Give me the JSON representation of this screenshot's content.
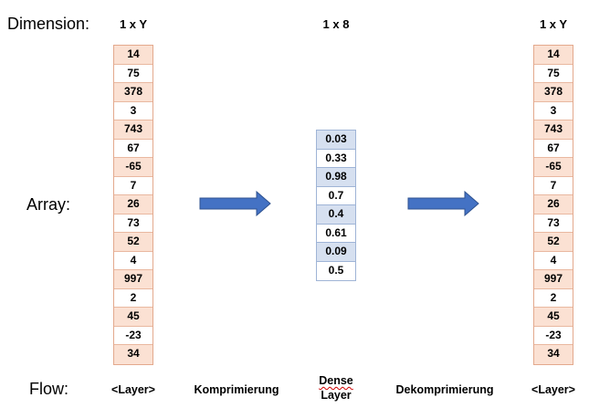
{
  "labels": {
    "dimension": "Dimension:",
    "array": "Array:",
    "flow": "Flow:"
  },
  "dimensions": {
    "left": "1 x Y",
    "middle": "1 x 8",
    "right": "1 x Y"
  },
  "arrays": {
    "left": [
      "14",
      "75",
      "378",
      "3",
      "743",
      "67",
      "-65",
      "7",
      "26",
      "73",
      "52",
      "4",
      "997",
      "2",
      "45",
      "-23",
      "34"
    ],
    "middle": [
      "0.03",
      "0.33",
      "0.98",
      "0.7",
      "0.4",
      "0.61",
      "0.09",
      "0.5"
    ],
    "right": [
      "14",
      "75",
      "378",
      "3",
      "743",
      "67",
      "-65",
      "7",
      "26",
      "73",
      "52",
      "4",
      "997",
      "2",
      "45",
      "-23",
      "34"
    ]
  },
  "flow": {
    "layer_left": "<Layer>",
    "compress": "Komprimierung",
    "dense_line1": "Dense",
    "dense_line2": "Layer",
    "decompress": "Dekomprimierung",
    "layer_right": "<Layer>"
  },
  "colors": {
    "orange_fill": "#fbe1d3",
    "blue_fill": "#d6e0f0",
    "arrow": "#4472c4"
  }
}
